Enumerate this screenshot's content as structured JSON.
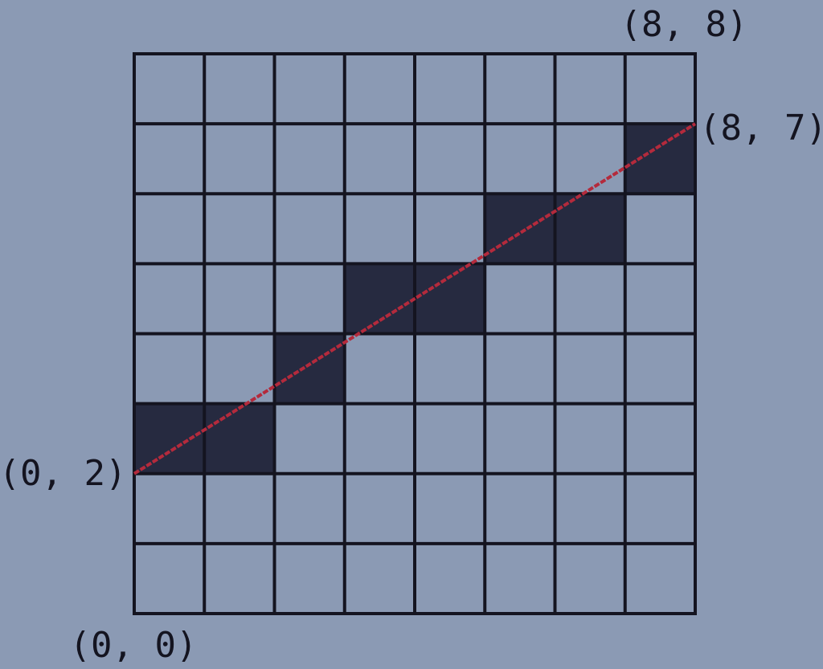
{
  "grid": {
    "columns": 8,
    "rows": 8
  },
  "filled_cells": [
    {
      "col": 0,
      "row": 2
    },
    {
      "col": 1,
      "row": 2
    },
    {
      "col": 2,
      "row": 3
    },
    {
      "col": 3,
      "row": 4
    },
    {
      "col": 4,
      "row": 4
    },
    {
      "col": 5,
      "row": 5
    },
    {
      "col": 6,
      "row": 5
    },
    {
      "col": 7,
      "row": 6
    }
  ],
  "line": {
    "start": {
      "x": 0,
      "y": 2
    },
    "end": {
      "x": 8,
      "y": 7
    }
  },
  "labels": {
    "top_right": "(8, 8)",
    "line_end": "(8, 7)",
    "line_start": "(0, 2)",
    "origin": "(0, 0)"
  },
  "colors": {
    "background": "#8b9ab4",
    "grid_line": "#141420",
    "filled_cell": "#262a40",
    "line": "#b42a3c"
  }
}
